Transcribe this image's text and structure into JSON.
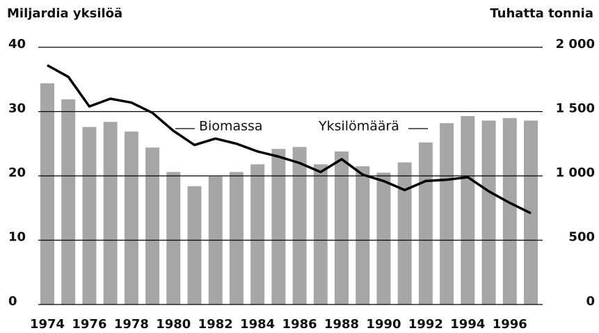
{
  "chart_data": {
    "type": "bar_line",
    "ylabel": "Miljardia yksilöä",
    "y2label": "Tuhatta tonnia",
    "categories": [
      "1974",
      null,
      "1976",
      null,
      "1978",
      null,
      "1980",
      null,
      "1982",
      null,
      "1984",
      null,
      "1986",
      null,
      "1988",
      null,
      "1990",
      null,
      "1992",
      null,
      "1994",
      null,
      "1996",
      null
    ],
    "series": [
      {
        "name": "Yksilömäärä",
        "type": "bar",
        "color": "#a6a6a6",
        "axis": "y",
        "values": [
          34.4,
          31.9,
          27.6,
          28.4,
          26.9,
          24.4,
          20.6,
          18.4,
          19.9,
          20.6,
          21.8,
          24.2,
          24.5,
          21.8,
          23.8,
          21.5,
          20.5,
          22.1,
          25.2,
          28.2,
          29.3,
          28.6,
          29.0,
          28.6
        ]
      },
      {
        "name": "Biomassa",
        "type": "line",
        "color": "#000000",
        "axis": "y2",
        "values": [
          1860,
          1770,
          1540,
          1600,
          1570,
          1490,
          1350,
          1240,
          1290,
          1250,
          1190,
          1150,
          1100,
          1030,
          1130,
          1010,
          960,
          890,
          960,
          970,
          990,
          880,
          790,
          710
        ]
      }
    ],
    "ylim": [
      0,
      40
    ],
    "yticks": [
      0,
      10,
      20,
      30,
      40
    ],
    "y2lim": [
      0,
      2000
    ],
    "y2ticks": [
      0,
      500,
      {
        "value": 1000,
        "label": "1 000"
      },
      {
        "value": 1500,
        "label": "1 500"
      },
      {
        "value": 2000,
        "label": "2 000"
      }
    ],
    "grid": true
  }
}
